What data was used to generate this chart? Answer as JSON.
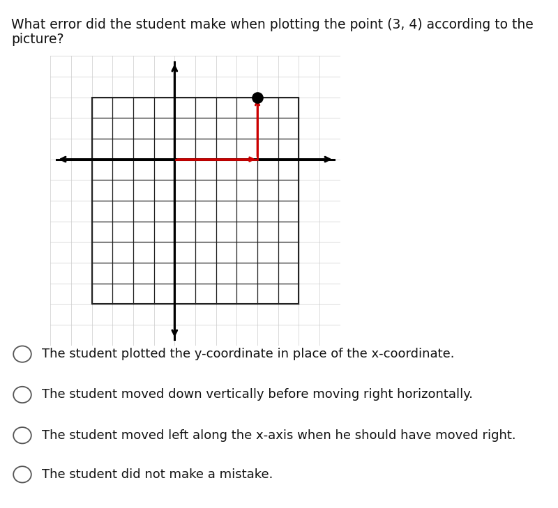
{
  "title_line1": "What error did the student make when plotting the point (3, 4) according to the",
  "title_line2": "picture?",
  "background_color": "#ffffff",
  "point_x": 4,
  "point_y": 3,
  "red_path_color": "#cc0000",
  "red_linewidth": 2.0,
  "dot_color": "#000000",
  "axis_color": "#000000",
  "axis_linewidth": 2.2,
  "inner_grid_color": "#222222",
  "inner_grid_lw": 0.9,
  "outer_grid_color": "#cccccc",
  "outer_grid_lw": 0.5,
  "inner_x0": -4,
  "inner_x1": 6,
  "inner_y0": -7,
  "inner_y1": 3,
  "xlim": [
    -6,
    8
  ],
  "ylim": [
    -9,
    5
  ],
  "choices": [
    "The student plotted the y-coordinate in place of the x-coordinate.",
    "The student moved down vertically before moving right horizontally.",
    "The student moved left along the x-axis when he should have moved right.",
    "The student did not make a mistake."
  ]
}
